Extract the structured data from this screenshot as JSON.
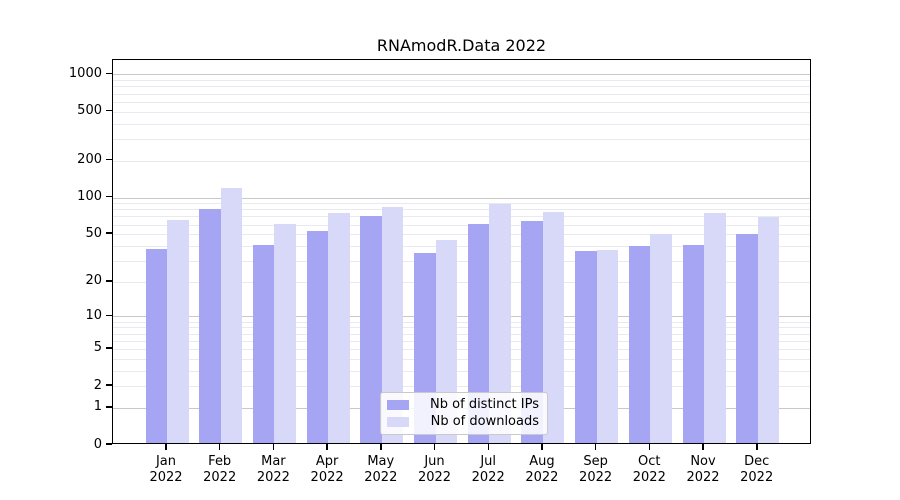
{
  "title": "RNAmodR.Data 2022",
  "chart_data": {
    "type": "bar",
    "title": "RNAmodR.Data 2022",
    "categories": [
      "Jan",
      "Feb",
      "Mar",
      "Apr",
      "May",
      "Jun",
      "Jul",
      "Aug",
      "Sep",
      "Oct",
      "Nov",
      "Dec"
    ],
    "x_tick_year": "2022",
    "series": [
      {
        "name": "Nb of distinct IPs",
        "color": "#a5a5f3",
        "values": [
          38,
          80,
          41,
          53,
          71,
          35,
          61,
          64,
          36,
          40,
          41,
          50
        ]
      },
      {
        "name": "Nb of downloads",
        "color": "#d8d8f8",
        "values": [
          65,
          119,
          61,
          75,
          84,
          45,
          89,
          76,
          37,
          50,
          75,
          69
        ]
      }
    ],
    "y_axis": {
      "scale": "log1p",
      "tick_labels": [
        0,
        1,
        2,
        5,
        10,
        20,
        50,
        100,
        200,
        500,
        1000
      ],
      "major_gridlines": [
        1,
        10,
        100,
        1000
      ],
      "ylim": [
        0,
        1300
      ]
    },
    "legend": {
      "position": "bottom-center",
      "entries": [
        "Nb of distinct IPs",
        "Nb of downloads"
      ]
    },
    "grid": "on"
  },
  "colors": {
    "background": "#ffffff",
    "plot_border": "#000000",
    "major_gridline": "#c8c8c8",
    "minor_gridline": "#e9e9f0",
    "axis_text": "#000000",
    "legend_border": "#c9c9c9",
    "legend_bg": "rgba(255,255,255,0.85)"
  }
}
